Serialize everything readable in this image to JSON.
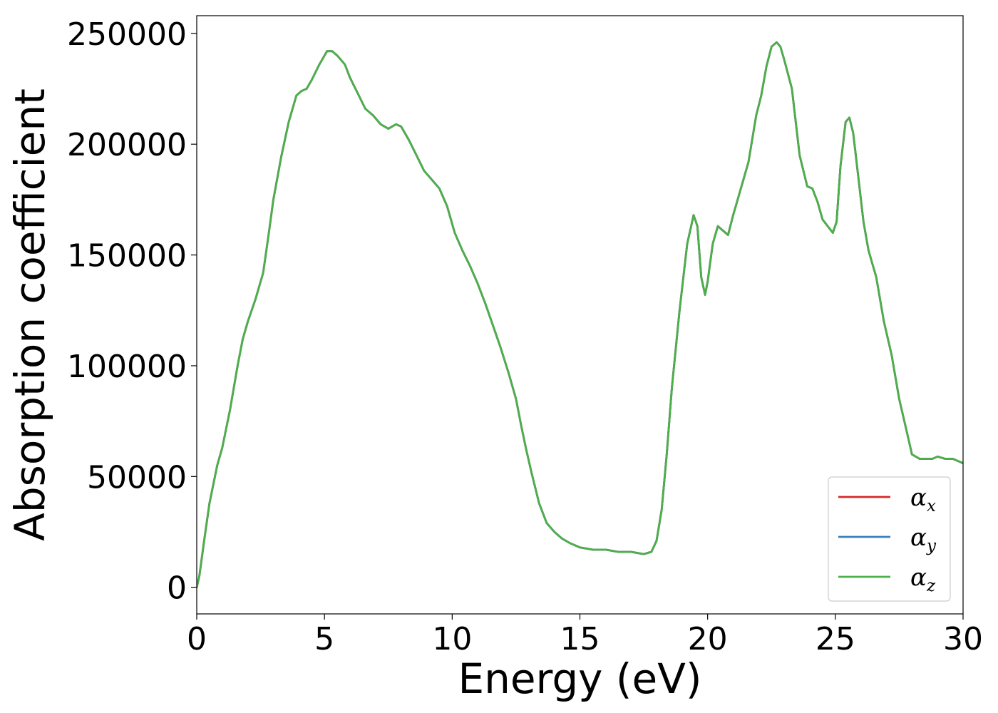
{
  "chart_data": {
    "type": "line",
    "title": "",
    "xlabel": "Energy (eV)",
    "ylabel": "Absorption coefficient",
    "xlim": [
      0,
      30
    ],
    "ylim": [
      -12000,
      258000
    ],
    "xticks": [
      0,
      5,
      10,
      15,
      20,
      25,
      30
    ],
    "yticks": [
      0,
      50000,
      100000,
      150000,
      200000,
      250000
    ],
    "grid": false,
    "legend_position": "bottom-right",
    "series": [
      {
        "name": "α",
        "subscript": "x",
        "color": "#d62728",
        "x": [
          0,
          0.1,
          0.3,
          0.5,
          0.8,
          1.0,
          1.3,
          1.6,
          1.8,
          2.0,
          2.3,
          2.6,
          2.8,
          3.0,
          3.3,
          3.6,
          3.9,
          4.1,
          4.3,
          4.5,
          4.8,
          5.1,
          5.3,
          5.5,
          5.8,
          6.0,
          6.3,
          6.6,
          6.9,
          7.2,
          7.5,
          7.8,
          8.0,
          8.3,
          8.6,
          8.9,
          9.2,
          9.5,
          9.8,
          10.1,
          10.4,
          10.7,
          11.0,
          11.3,
          11.6,
          11.9,
          12.2,
          12.5,
          12.7,
          12.9,
          13.1,
          13.4,
          13.7,
          14.0,
          14.3,
          14.6,
          15.0,
          15.5,
          16.0,
          16.5,
          17.0,
          17.5,
          17.8,
          18.0,
          18.2,
          18.4,
          18.6,
          18.9,
          19.2,
          19.45,
          19.6,
          19.75,
          19.9,
          20.0,
          20.2,
          20.4,
          20.6,
          20.8,
          21.0,
          21.3,
          21.6,
          21.9,
          22.1,
          22.3,
          22.5,
          22.7,
          22.85,
          23.0,
          23.3,
          23.6,
          23.9,
          24.1,
          24.3,
          24.5,
          24.7,
          24.9,
          25.05,
          25.2,
          25.4,
          25.55,
          25.7,
          25.9,
          26.1,
          26.3,
          26.6,
          26.9,
          27.2,
          27.5,
          27.8,
          28.0,
          28.3,
          28.5,
          28.8,
          29.0,
          29.3,
          29.6,
          30.0
        ],
        "y": [
          0,
          5000,
          22000,
          38000,
          55000,
          63000,
          80000,
          100000,
          112000,
          120000,
          130000,
          142000,
          158000,
          175000,
          194000,
          210000,
          222000,
          224000,
          225000,
          229000,
          236000,
          242000,
          242000,
          240000,
          236000,
          230000,
          223000,
          216000,
          213000,
          209000,
          207000,
          209000,
          208000,
          202000,
          195000,
          188000,
          184000,
          180000,
          172000,
          160000,
          152000,
          145000,
          137000,
          128000,
          118000,
          108000,
          97000,
          85000,
          73000,
          62000,
          52000,
          38000,
          29000,
          25000,
          22000,
          20000,
          18000,
          17000,
          17000,
          16000,
          16000,
          15000,
          16000,
          21000,
          35000,
          60000,
          90000,
          125000,
          155000,
          168000,
          163000,
          140000,
          132000,
          138000,
          155000,
          163000,
          161000,
          159000,
          168000,
          180000,
          192000,
          213000,
          222000,
          235000,
          244000,
          246000,
          244000,
          238000,
          225000,
          195000,
          181000,
          180000,
          174000,
          166000,
          163000,
          160000,
          165000,
          190000,
          210000,
          212000,
          205000,
          185000,
          165000,
          152000,
          140000,
          120000,
          105000,
          85000,
          70000,
          60000,
          58000,
          58000,
          58000,
          59000,
          58000,
          58000,
          56000
        ]
      },
      {
        "name": "α",
        "subscript": "y",
        "color": "#377eb8",
        "x": [
          0,
          0.1,
          0.3,
          0.5,
          0.8,
          1.0,
          1.3,
          1.6,
          1.8,
          2.0,
          2.3,
          2.6,
          2.8,
          3.0,
          3.3,
          3.6,
          3.9,
          4.1,
          4.3,
          4.5,
          4.8,
          5.1,
          5.3,
          5.5,
          5.8,
          6.0,
          6.3,
          6.6,
          6.9,
          7.2,
          7.5,
          7.8,
          8.0,
          8.3,
          8.6,
          8.9,
          9.2,
          9.5,
          9.8,
          10.1,
          10.4,
          10.7,
          11.0,
          11.3,
          11.6,
          11.9,
          12.2,
          12.5,
          12.7,
          12.9,
          13.1,
          13.4,
          13.7,
          14.0,
          14.3,
          14.6,
          15.0,
          15.5,
          16.0,
          16.5,
          17.0,
          17.5,
          17.8,
          18.0,
          18.2,
          18.4,
          18.6,
          18.9,
          19.2,
          19.45,
          19.6,
          19.75,
          19.9,
          20.0,
          20.2,
          20.4,
          20.6,
          20.8,
          21.0,
          21.3,
          21.6,
          21.9,
          22.1,
          22.3,
          22.5,
          22.7,
          22.85,
          23.0,
          23.3,
          23.6,
          23.9,
          24.1,
          24.3,
          24.5,
          24.7,
          24.9,
          25.05,
          25.2,
          25.4,
          25.55,
          25.7,
          25.9,
          26.1,
          26.3,
          26.6,
          26.9,
          27.2,
          27.5,
          27.8,
          28.0,
          28.3,
          28.5,
          28.8,
          29.0,
          29.3,
          29.6,
          30.0
        ],
        "y": [
          0,
          5000,
          22000,
          38000,
          55000,
          63000,
          80000,
          100000,
          112000,
          120000,
          130000,
          142000,
          158000,
          175000,
          194000,
          210000,
          222000,
          224000,
          225000,
          229000,
          236000,
          242000,
          242000,
          240000,
          236000,
          230000,
          223000,
          216000,
          213000,
          209000,
          207000,
          209000,
          208000,
          202000,
          195000,
          188000,
          184000,
          180000,
          172000,
          160000,
          152000,
          145000,
          137000,
          128000,
          118000,
          108000,
          97000,
          85000,
          73000,
          62000,
          52000,
          38000,
          29000,
          25000,
          22000,
          20000,
          18000,
          17000,
          17000,
          16000,
          16000,
          15000,
          16000,
          21000,
          35000,
          60000,
          90000,
          125000,
          155000,
          168000,
          163000,
          140000,
          132000,
          138000,
          155000,
          163000,
          161000,
          159000,
          168000,
          180000,
          192000,
          213000,
          222000,
          235000,
          244000,
          246000,
          244000,
          238000,
          225000,
          195000,
          181000,
          180000,
          174000,
          166000,
          163000,
          160000,
          165000,
          190000,
          210000,
          212000,
          205000,
          185000,
          165000,
          152000,
          140000,
          120000,
          105000,
          85000,
          70000,
          60000,
          58000,
          58000,
          58000,
          59000,
          58000,
          58000,
          56000
        ]
      },
      {
        "name": "α",
        "subscript": "z",
        "color": "#4daf4a",
        "x": [
          0,
          0.1,
          0.3,
          0.5,
          0.8,
          1.0,
          1.3,
          1.6,
          1.8,
          2.0,
          2.3,
          2.6,
          2.8,
          3.0,
          3.3,
          3.6,
          3.9,
          4.1,
          4.3,
          4.5,
          4.8,
          5.1,
          5.3,
          5.5,
          5.8,
          6.0,
          6.3,
          6.6,
          6.9,
          7.2,
          7.5,
          7.8,
          8.0,
          8.3,
          8.6,
          8.9,
          9.2,
          9.5,
          9.8,
          10.1,
          10.4,
          10.7,
          11.0,
          11.3,
          11.6,
          11.9,
          12.2,
          12.5,
          12.7,
          12.9,
          13.1,
          13.4,
          13.7,
          14.0,
          14.3,
          14.6,
          15.0,
          15.5,
          16.0,
          16.5,
          17.0,
          17.5,
          17.8,
          18.0,
          18.2,
          18.4,
          18.6,
          18.9,
          19.2,
          19.45,
          19.6,
          19.75,
          19.9,
          20.0,
          20.2,
          20.4,
          20.6,
          20.8,
          21.0,
          21.3,
          21.6,
          21.9,
          22.1,
          22.3,
          22.5,
          22.7,
          22.85,
          23.0,
          23.3,
          23.6,
          23.9,
          24.1,
          24.3,
          24.5,
          24.7,
          24.9,
          25.05,
          25.2,
          25.4,
          25.55,
          25.7,
          25.9,
          26.1,
          26.3,
          26.6,
          26.9,
          27.2,
          27.5,
          27.8,
          28.0,
          28.3,
          28.5,
          28.8,
          29.0,
          29.3,
          29.6,
          30.0
        ],
        "y": [
          0,
          5000,
          22000,
          38000,
          55000,
          63000,
          80000,
          100000,
          112000,
          120000,
          130000,
          142000,
          158000,
          175000,
          194000,
          210000,
          222000,
          224000,
          225000,
          229000,
          236000,
          242000,
          242000,
          240000,
          236000,
          230000,
          223000,
          216000,
          213000,
          209000,
          207000,
          209000,
          208000,
          202000,
          195000,
          188000,
          184000,
          180000,
          172000,
          160000,
          152000,
          145000,
          137000,
          128000,
          118000,
          108000,
          97000,
          85000,
          73000,
          62000,
          52000,
          38000,
          29000,
          25000,
          22000,
          20000,
          18000,
          17000,
          17000,
          16000,
          16000,
          15000,
          16000,
          21000,
          35000,
          60000,
          90000,
          125000,
          155000,
          168000,
          163000,
          140000,
          132000,
          138000,
          155000,
          163000,
          161000,
          159000,
          168000,
          180000,
          192000,
          213000,
          222000,
          235000,
          244000,
          246000,
          244000,
          238000,
          225000,
          195000,
          181000,
          180000,
          174000,
          166000,
          163000,
          160000,
          165000,
          190000,
          210000,
          212000,
          205000,
          185000,
          165000,
          152000,
          140000,
          120000,
          105000,
          85000,
          70000,
          60000,
          58000,
          58000,
          58000,
          59000,
          58000,
          58000,
          56000
        ]
      }
    ]
  }
}
